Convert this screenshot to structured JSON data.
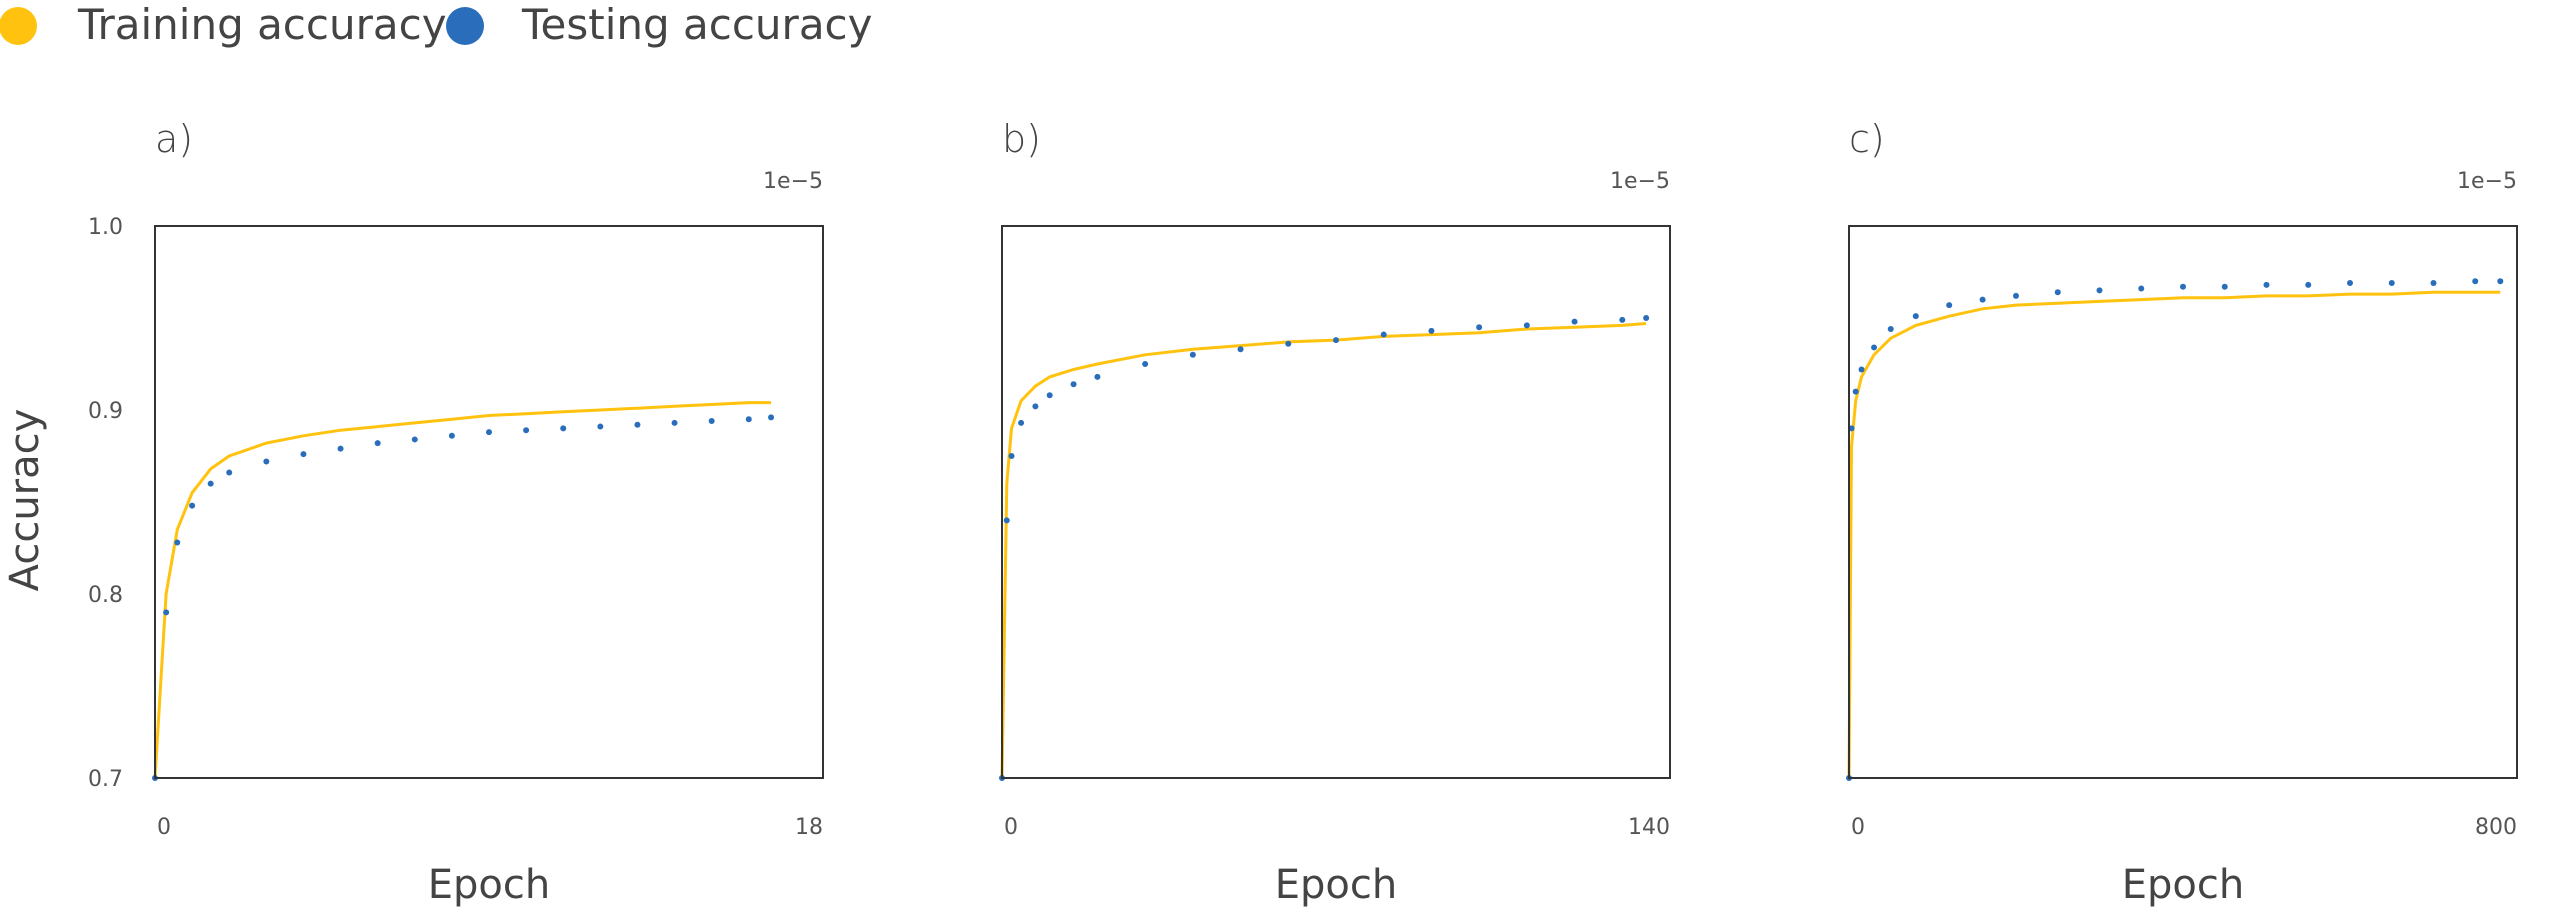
{
  "legend": [
    {
      "label": "Training accuracy",
      "color": "#FFC20E",
      "marker": "filled-circle"
    },
    {
      "label": "Testing accuracy",
      "color": "#2A6EBB",
      "marker": "filled-circle"
    }
  ],
  "shared_ylabel": "Accuracy",
  "chart_data": [
    {
      "type": "line",
      "panel_label": "a)",
      "xlabel": "Epoch",
      "xticks": [
        "0",
        "18"
      ],
      "xlim": [
        0,
        18
      ],
      "x_scale_label": "1e−5",
      "ylim": [
        0.7,
        1.0
      ],
      "yticks": [
        "0.7",
        "0.8",
        "0.9",
        "1.0"
      ],
      "grid": false,
      "series": [
        {
          "name": "Training accuracy",
          "style": "line",
          "color": "#FFC20E",
          "x": [
            0,
            0.3,
            0.6,
            1.0,
            1.5,
            2,
            3,
            4,
            5,
            6,
            7,
            8,
            9,
            10,
            11,
            12,
            13,
            14,
            15,
            16,
            16.6
          ],
          "y": [
            0.7,
            0.8,
            0.835,
            0.855,
            0.868,
            0.875,
            0.882,
            0.886,
            0.889,
            0.891,
            0.893,
            0.895,
            0.897,
            0.898,
            0.899,
            0.9,
            0.901,
            0.902,
            0.903,
            0.904,
            0.904
          ]
        },
        {
          "name": "Testing accuracy",
          "style": "scatter",
          "color": "#2A6EBB",
          "x": [
            0,
            0.3,
            0.6,
            1.0,
            1.5,
            2,
            3,
            4,
            5,
            6,
            7,
            8,
            9,
            10,
            11,
            12,
            13,
            14,
            15,
            16,
            16.6
          ],
          "y": [
            0.7,
            0.79,
            0.828,
            0.848,
            0.86,
            0.866,
            0.872,
            0.876,
            0.879,
            0.882,
            0.884,
            0.886,
            0.888,
            0.889,
            0.89,
            0.891,
            0.892,
            0.893,
            0.894,
            0.895,
            0.896
          ]
        }
      ]
    },
    {
      "type": "line",
      "panel_label": "b)",
      "xlabel": "Epoch",
      "xticks": [
        "0",
        "140"
      ],
      "xlim": [
        0,
        140
      ],
      "x_scale_label": "1e−5",
      "ylim": [
        0.7,
        1.0
      ],
      "yticks": [],
      "grid": false,
      "series": [
        {
          "name": "Training accuracy",
          "style": "line",
          "color": "#FFC20E",
          "x": [
            0,
            1,
            2,
            4,
            7,
            10,
            15,
            20,
            30,
            40,
            50,
            60,
            70,
            80,
            90,
            100,
            110,
            120,
            130,
            135
          ],
          "y": [
            0.7,
            0.86,
            0.89,
            0.905,
            0.913,
            0.918,
            0.922,
            0.925,
            0.93,
            0.933,
            0.935,
            0.937,
            0.938,
            0.94,
            0.941,
            0.942,
            0.944,
            0.945,
            0.946,
            0.947
          ]
        },
        {
          "name": "Testing accuracy",
          "style": "scatter",
          "color": "#2A6EBB",
          "x": [
            0,
            1,
            2,
            4,
            7,
            10,
            15,
            20,
            30,
            40,
            50,
            60,
            70,
            80,
            90,
            100,
            110,
            120,
            130,
            135
          ],
          "y": [
            0.7,
            0.84,
            0.875,
            0.893,
            0.902,
            0.908,
            0.914,
            0.918,
            0.925,
            0.93,
            0.933,
            0.936,
            0.938,
            0.941,
            0.943,
            0.945,
            0.946,
            0.948,
            0.949,
            0.95
          ]
        }
      ]
    },
    {
      "type": "line",
      "panel_label": "c)",
      "xlabel": "Epoch",
      "xticks": [
        "0",
        "800"
      ],
      "xlim": [
        0,
        800
      ],
      "x_scale_label": "1e−5",
      "ylim": [
        0.7,
        1.0
      ],
      "yticks": [],
      "grid": false,
      "series": [
        {
          "name": "Training accuracy",
          "style": "line",
          "color": "#FFC20E",
          "x": [
            0,
            3,
            8,
            15,
            30,
            50,
            80,
            120,
            160,
            200,
            250,
            300,
            350,
            400,
            450,
            500,
            550,
            600,
            650,
            700,
            750,
            780
          ],
          "y": [
            0.7,
            0.88,
            0.905,
            0.918,
            0.93,
            0.939,
            0.946,
            0.951,
            0.955,
            0.957,
            0.958,
            0.959,
            0.96,
            0.961,
            0.961,
            0.962,
            0.962,
            0.963,
            0.963,
            0.964,
            0.964,
            0.964
          ]
        },
        {
          "name": "Testing accuracy",
          "style": "scatter",
          "color": "#2A6EBB",
          "x": [
            0,
            3,
            8,
            15,
            30,
            50,
            80,
            120,
            160,
            200,
            250,
            300,
            350,
            400,
            450,
            500,
            550,
            600,
            650,
            700,
            750,
            780
          ],
          "y": [
            0.7,
            0.89,
            0.91,
            0.922,
            0.934,
            0.944,
            0.951,
            0.957,
            0.96,
            0.962,
            0.964,
            0.965,
            0.966,
            0.967,
            0.967,
            0.968,
            0.968,
            0.969,
            0.969,
            0.969,
            0.97,
            0.97
          ]
        }
      ]
    }
  ]
}
